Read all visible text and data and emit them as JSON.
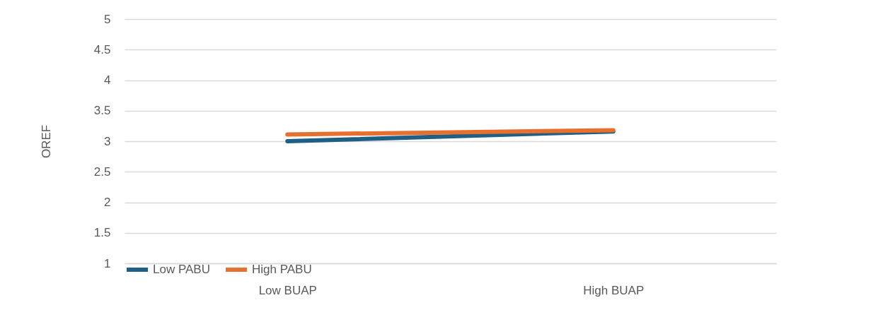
{
  "chart_data": {
    "type": "line",
    "ylabel": "OREF",
    "categories": [
      "Low BUAP",
      "High BUAP"
    ],
    "series": [
      {
        "name": "Low PABU",
        "color": "#1f5f85",
        "values": [
          3.0,
          3.16
        ]
      },
      {
        "name": "High PABU",
        "color": "#e8702f",
        "values": [
          3.11,
          3.18
        ]
      }
    ],
    "ylim": [
      1,
      5
    ],
    "yticks": [
      1,
      1.5,
      2,
      2.5,
      3,
      3.5,
      4,
      4.5,
      5
    ],
    "grid": "y",
    "legend": "bottom",
    "marker": "none",
    "line_style": "solid"
  }
}
